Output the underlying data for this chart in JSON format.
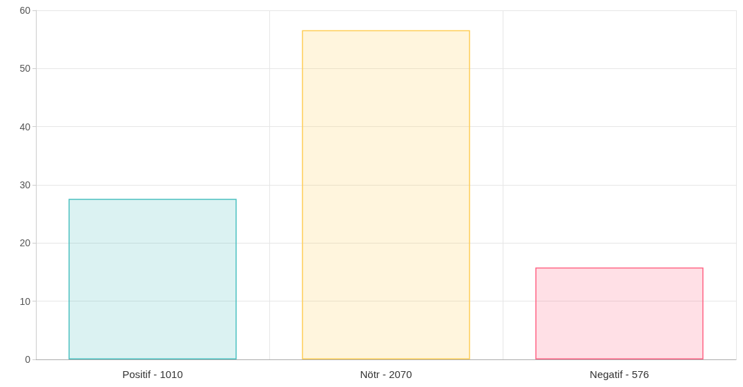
{
  "chart_data": {
    "type": "bar",
    "categories": [
      "Positif - 1010",
      "Nötr - 2070",
      "Negatif - 576"
    ],
    "values": [
      27.6,
      56.6,
      15.8
    ],
    "colors": [
      "#4bc0c0",
      "#ffcd56",
      "#ff6384"
    ],
    "ylim": [
      0,
      60
    ],
    "yticks": [
      0,
      10,
      20,
      30,
      40,
      50,
      60
    ],
    "grid": true
  }
}
